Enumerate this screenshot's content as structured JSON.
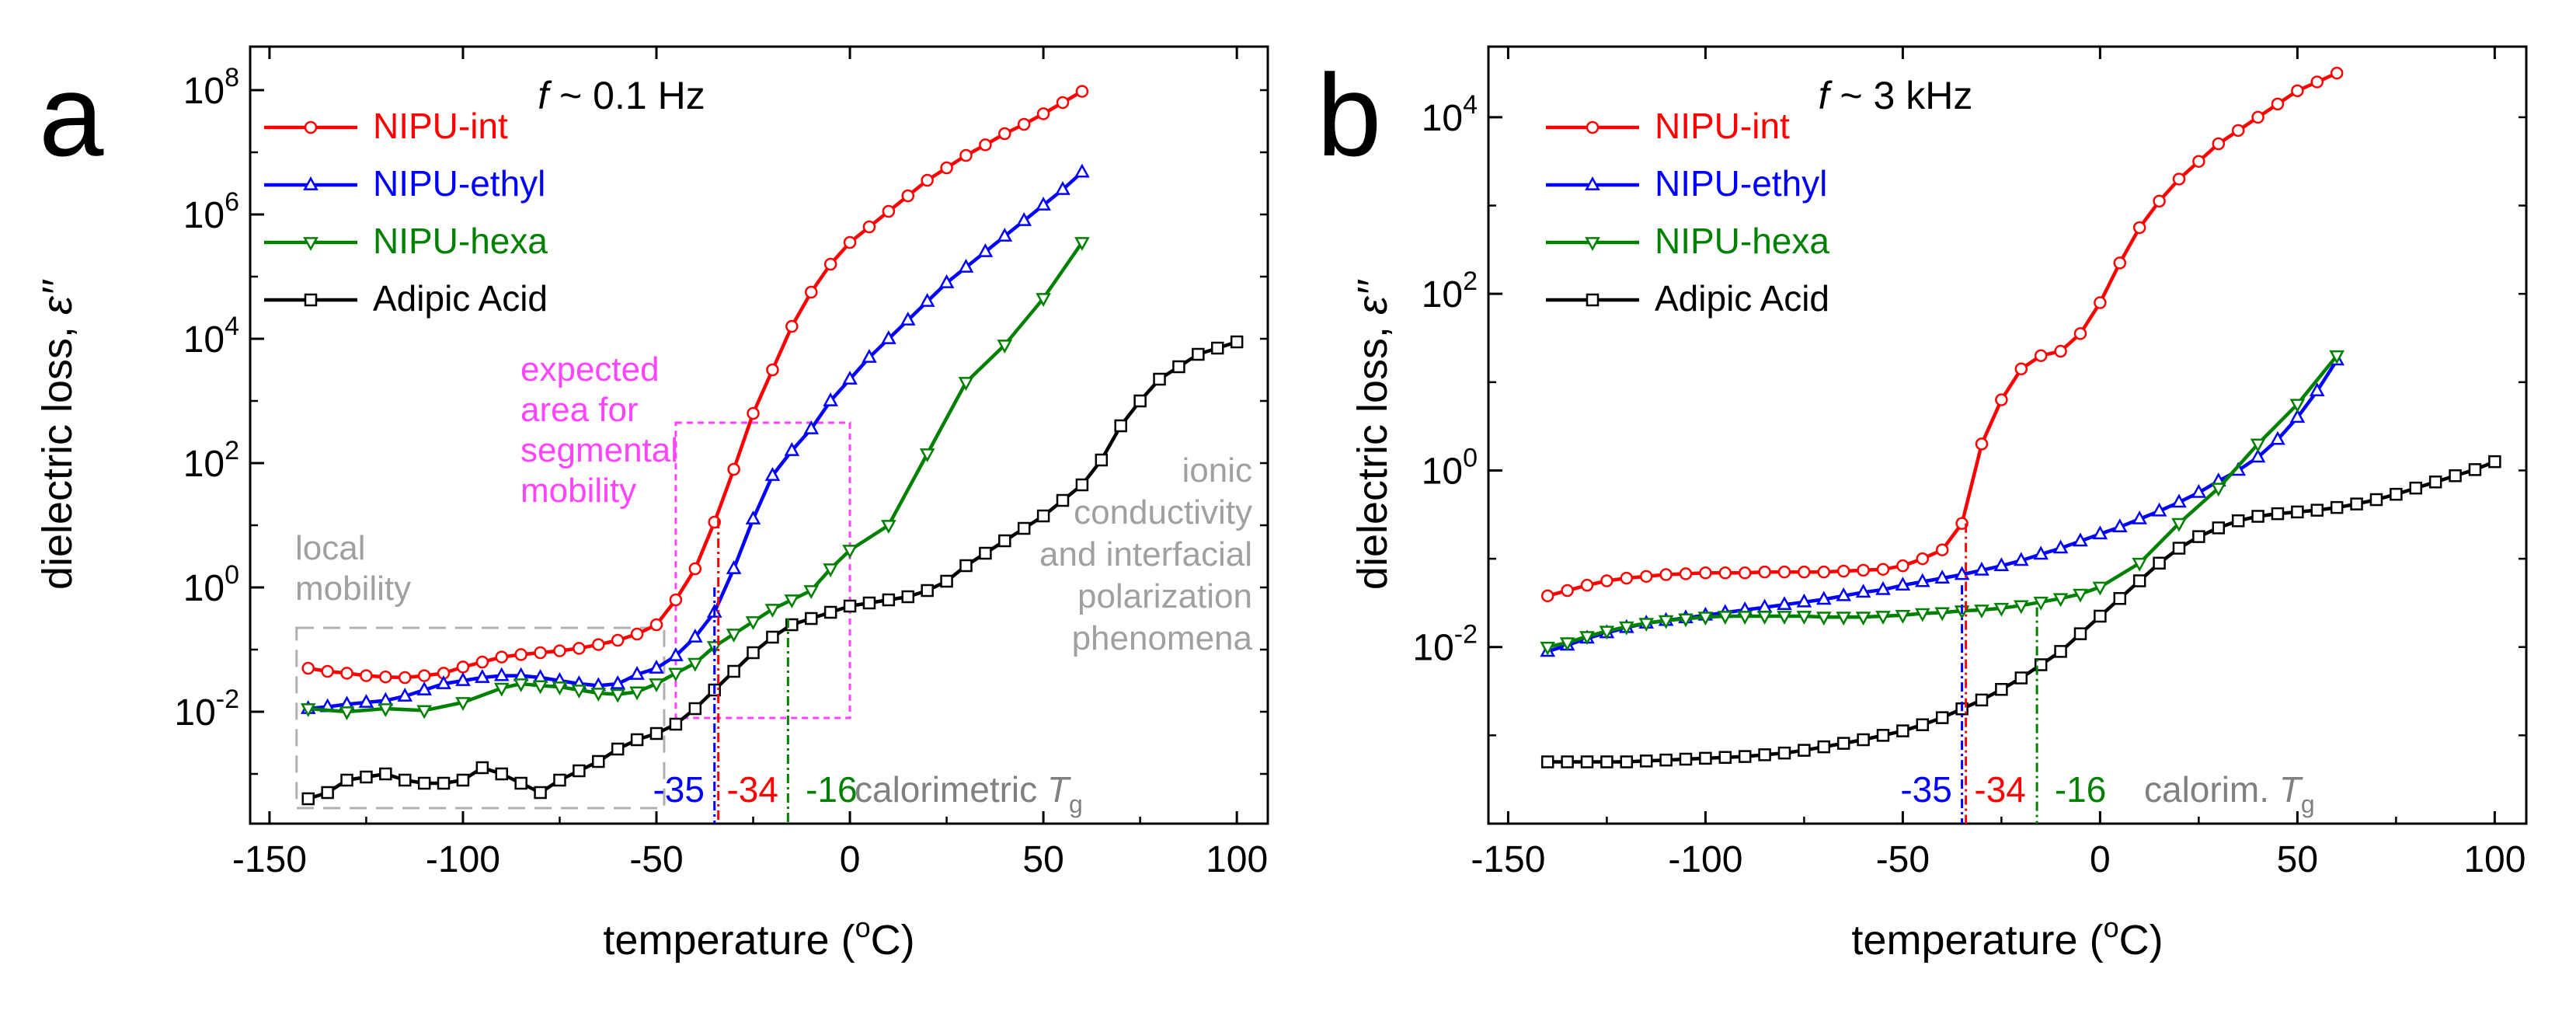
{
  "chart_data": [
    {
      "type": "line",
      "panel_label": "a",
      "frequency_label": "f ~ 0.1 Hz",
      "xlabel": "temperature (°C)",
      "ylabel": "dielectric loss, ε′′",
      "xlim": [
        -155,
        108
      ],
      "ylim_log10": [
        -3.8,
        8.7
      ],
      "xticks": [
        -150,
        -100,
        -50,
        0,
        50,
        100
      ],
      "xtick_labels": [
        "-150",
        "-100",
        "-50",
        "0",
        "50",
        "100"
      ],
      "yticks_log10": [
        -2,
        0,
        2,
        4,
        6,
        8
      ],
      "ytick_labels": [
        "10-2",
        "100",
        "102",
        "104",
        "106",
        "108"
      ],
      "legend_position": "top-left",
      "series": [
        {
          "name": "NIPU-int",
          "color": "#ff0000",
          "marker": "circle",
          "x": [
            -140,
            -135,
            -130,
            -125,
            -120,
            -115,
            -110,
            -105,
            -100,
            -95,
            -90,
            -85,
            -80,
            -75,
            -70,
            -65,
            -60,
            -55,
            -50,
            -45,
            -40,
            -35,
            -30,
            -25,
            -20,
            -15,
            -10,
            -5,
            0,
            5,
            10,
            15,
            20,
            25,
            30,
            35,
            40,
            45,
            50,
            55,
            60
          ],
          "log10_y": [
            -1.3,
            -1.35,
            -1.38,
            -1.42,
            -1.44,
            -1.45,
            -1.42,
            -1.38,
            -1.28,
            -1.2,
            -1.12,
            -1.08,
            -1.05,
            -1.02,
            -0.98,
            -0.92,
            -0.85,
            -0.75,
            -0.6,
            -0.2,
            0.3,
            1.05,
            1.9,
            2.8,
            3.5,
            4.2,
            4.75,
            5.2,
            5.55,
            5.8,
            6.05,
            6.3,
            6.55,
            6.75,
            6.95,
            7.12,
            7.3,
            7.45,
            7.62,
            7.8,
            7.98
          ]
        },
        {
          "name": "NIPU-ethyl",
          "color": "#0000ff",
          "marker": "triangle-up",
          "x": [
            -140,
            -135,
            -130,
            -125,
            -120,
            -115,
            -110,
            -105,
            -100,
            -95,
            -90,
            -85,
            -80,
            -75,
            -70,
            -65,
            -60,
            -55,
            -50,
            -45,
            -40,
            -35,
            -30,
            -25,
            -20,
            -15,
            -10,
            -5,
            0,
            5,
            10,
            15,
            20,
            25,
            30,
            35,
            40,
            45,
            50,
            55,
            60
          ],
          "log10_y": [
            -1.95,
            -1.92,
            -1.88,
            -1.85,
            -1.82,
            -1.75,
            -1.65,
            -1.55,
            -1.5,
            -1.45,
            -1.42,
            -1.42,
            -1.45,
            -1.5,
            -1.55,
            -1.58,
            -1.55,
            -1.4,
            -1.3,
            -1.1,
            -0.8,
            -0.4,
            0.3,
            1.1,
            1.8,
            2.2,
            2.55,
            3.0,
            3.35,
            3.7,
            4.0,
            4.3,
            4.6,
            4.9,
            5.15,
            5.4,
            5.65,
            5.9,
            6.15,
            6.4,
            6.68
          ]
        },
        {
          "name": "NIPU-hexa",
          "color": "#008000",
          "marker": "triangle-down",
          "x": [
            -140,
            -130,
            -120,
            -110,
            -100,
            -90,
            -85,
            -80,
            -75,
            -70,
            -65,
            -60,
            -55,
            -50,
            -45,
            -40,
            -35,
            -30,
            -25,
            -20,
            -15,
            -10,
            -5,
            0,
            10,
            20,
            30,
            40,
            50,
            60
          ],
          "log10_y": [
            -1.95,
            -2.0,
            -1.95,
            -1.98,
            -1.85,
            -1.62,
            -1.55,
            -1.58,
            -1.6,
            -1.65,
            -1.7,
            -1.72,
            -1.68,
            -1.55,
            -1.38,
            -1.22,
            -0.95,
            -0.75,
            -0.55,
            -0.35,
            -0.2,
            -0.05,
            0.3,
            0.6,
            1.0,
            2.15,
            3.3,
            3.9,
            4.65,
            5.55
          ]
        },
        {
          "name": "Adipic Acid",
          "color": "#000000",
          "marker": "square",
          "x": [
            -140,
            -135,
            -130,
            -125,
            -120,
            -115,
            -110,
            -105,
            -100,
            -95,
            -90,
            -85,
            -80,
            -75,
            -70,
            -65,
            -60,
            -55,
            -50,
            -45,
            -40,
            -35,
            -30,
            -25,
            -20,
            -15,
            -10,
            -5,
            0,
            5,
            10,
            15,
            20,
            25,
            30,
            35,
            40,
            45,
            50,
            55,
            60,
            65,
            70,
            75,
            80,
            85,
            90,
            95,
            100
          ],
          "log10_y": [
            -3.4,
            -3.3,
            -3.1,
            -3.05,
            -3.0,
            -3.1,
            -3.15,
            -3.15,
            -3.1,
            -2.9,
            -3.0,
            -3.15,
            -3.3,
            -3.1,
            -2.95,
            -2.8,
            -2.6,
            -2.45,
            -2.35,
            -2.2,
            -1.95,
            -1.65,
            -1.35,
            -1.05,
            -0.8,
            -0.6,
            -0.5,
            -0.4,
            -0.3,
            -0.25,
            -0.2,
            -0.15,
            -0.05,
            0.1,
            0.35,
            0.55,
            0.75,
            0.95,
            1.15,
            1.4,
            1.65,
            2.05,
            2.6,
            3.0,
            3.35,
            3.55,
            3.75,
            3.85,
            3.95
          ]
        }
      ],
      "vlines": [
        {
          "x": -35,
          "label": "-35",
          "color": "#0000ff",
          "log10_top": 0.0
        },
        {
          "x": -34,
          "label": "-34",
          "color": "#ff0000",
          "log10_top": 1.1
        },
        {
          "x": -16,
          "label": "-16",
          "color": "#008000",
          "log10_top": -0.5
        }
      ],
      "tg_label": "calorimetric T",
      "tg_subscript": "g",
      "annotations": {
        "local_mobility": [
          "local",
          "mobility"
        ],
        "expected_area": [
          "expected",
          "area for",
          "segmental",
          "mobility"
        ],
        "ionic": [
          "ionic",
          "conductivity",
          "and interfacial",
          "polarization",
          "phenomena"
        ]
      },
      "boxes": [
        {
          "name": "local-mobility-box",
          "x0": -143,
          "x1": -48,
          "log10_y0": -3.55,
          "log10_y1": -0.65,
          "color": "#b0b0b0"
        },
        {
          "name": "segmental-box",
          "x0": -45,
          "x1": 0,
          "log10_y0": -2.1,
          "log10_y1": 2.65,
          "color": "#ff44ff"
        }
      ]
    },
    {
      "type": "line",
      "panel_label": "b",
      "frequency_label": "f ~ 3 kHz",
      "xlabel": "temperature (°C)",
      "ylabel": "dielectric loss, ε′′",
      "xlim": [
        -155,
        108
      ],
      "ylim_log10": [
        -4.0,
        4.8
      ],
      "xticks": [
        -150,
        -100,
        -50,
        0,
        50,
        100
      ],
      "xtick_labels": [
        "-150",
        "-100",
        "-50",
        "0",
        "50",
        "100"
      ],
      "yticks_log10": [
        -2,
        0,
        2,
        4
      ],
      "ytick_labels": [
        "10-2",
        "100",
        "102",
        "104"
      ],
      "legend_position": "top-left",
      "series": [
        {
          "name": "NIPU-int",
          "color": "#ff0000",
          "marker": "circle",
          "x": [
            -140,
            -135,
            -130,
            -125,
            -120,
            -115,
            -110,
            -105,
            -100,
            -95,
            -90,
            -85,
            -80,
            -75,
            -70,
            -65,
            -60,
            -55,
            -50,
            -45,
            -40,
            -35,
            -30,
            -25,
            -20,
            -15,
            -10,
            -5,
            0,
            5,
            10,
            15,
            20,
            25,
            30,
            35,
            40,
            45,
            50,
            55,
            60
          ],
          "log10_y": [
            -1.42,
            -1.36,
            -1.3,
            -1.25,
            -1.22,
            -1.2,
            -1.18,
            -1.17,
            -1.16,
            -1.16,
            -1.16,
            -1.15,
            -1.15,
            -1.15,
            -1.15,
            -1.14,
            -1.13,
            -1.12,
            -1.08,
            -1.0,
            -0.9,
            -0.6,
            0.3,
            0.8,
            1.15,
            1.3,
            1.35,
            1.55,
            1.9,
            2.35,
            2.75,
            3.05,
            3.3,
            3.5,
            3.7,
            3.85,
            4.0,
            4.15,
            4.3,
            4.4,
            4.5
          ]
        },
        {
          "name": "NIPU-ethyl",
          "color": "#0000ff",
          "marker": "triangle-up",
          "x": [
            -140,
            -135,
            -130,
            -125,
            -120,
            -115,
            -110,
            -105,
            -100,
            -95,
            -90,
            -85,
            -80,
            -75,
            -70,
            -65,
            -60,
            -55,
            -50,
            -45,
            -40,
            -35,
            -30,
            -25,
            -20,
            -15,
            -10,
            -5,
            0,
            5,
            10,
            15,
            20,
            25,
            30,
            35,
            40,
            45,
            50,
            55,
            60
          ],
          "log10_y": [
            -2.05,
            -1.98,
            -1.9,
            -1.84,
            -1.78,
            -1.73,
            -1.7,
            -1.67,
            -1.64,
            -1.61,
            -1.58,
            -1.55,
            -1.52,
            -1.49,
            -1.46,
            -1.42,
            -1.38,
            -1.35,
            -1.3,
            -1.26,
            -1.22,
            -1.18,
            -1.13,
            -1.08,
            -1.02,
            -0.95,
            -0.88,
            -0.8,
            -0.72,
            -0.64,
            -0.55,
            -0.46,
            -0.36,
            -0.25,
            -0.12,
            0.0,
            0.15,
            0.35,
            0.6,
            0.9,
            1.25
          ]
        },
        {
          "name": "NIPU-hexa",
          "color": "#008000",
          "marker": "triangle-down",
          "x": [
            -140,
            -135,
            -130,
            -125,
            -120,
            -115,
            -110,
            -105,
            -100,
            -95,
            -90,
            -85,
            -80,
            -75,
            -70,
            -65,
            -60,
            -55,
            -50,
            -45,
            -40,
            -35,
            -30,
            -25,
            -20,
            -15,
            -10,
            -5,
            0,
            10,
            20,
            30,
            40,
            50,
            60
          ],
          "log10_y": [
            -2.0,
            -1.95,
            -1.88,
            -1.82,
            -1.77,
            -1.73,
            -1.7,
            -1.68,
            -1.66,
            -1.65,
            -1.65,
            -1.65,
            -1.65,
            -1.65,
            -1.66,
            -1.66,
            -1.66,
            -1.65,
            -1.64,
            -1.62,
            -1.61,
            -1.59,
            -1.58,
            -1.56,
            -1.53,
            -1.49,
            -1.45,
            -1.4,
            -1.32,
            -1.05,
            -0.6,
            -0.2,
            0.3,
            0.75,
            1.3
          ]
        },
        {
          "name": "Adipic Acid",
          "color": "#000000",
          "marker": "square",
          "x": [
            -140,
            -135,
            -130,
            -125,
            -120,
            -115,
            -110,
            -105,
            -100,
            -95,
            -90,
            -85,
            -80,
            -75,
            -70,
            -65,
            -60,
            -55,
            -50,
            -45,
            -40,
            -35,
            -30,
            -25,
            -20,
            -15,
            -10,
            -5,
            0,
            5,
            10,
            15,
            20,
            25,
            30,
            35,
            40,
            45,
            50,
            55,
            60,
            65,
            70,
            75,
            80,
            85,
            90,
            95,
            100
          ],
          "log10_y": [
            -3.3,
            -3.3,
            -3.3,
            -3.3,
            -3.3,
            -3.29,
            -3.28,
            -3.27,
            -3.26,
            -3.25,
            -3.24,
            -3.22,
            -3.2,
            -3.17,
            -3.13,
            -3.09,
            -3.05,
            -3.0,
            -2.95,
            -2.88,
            -2.8,
            -2.7,
            -2.6,
            -2.48,
            -2.35,
            -2.2,
            -2.05,
            -1.85,
            -1.65,
            -1.45,
            -1.25,
            -1.05,
            -0.88,
            -0.75,
            -0.65,
            -0.57,
            -0.52,
            -0.49,
            -0.47,
            -0.45,
            -0.42,
            -0.38,
            -0.33,
            -0.27,
            -0.2,
            -0.13,
            -0.06,
            0.01,
            0.1
          ]
        }
      ],
      "vlines": [
        {
          "x": -35,
          "label": "-35",
          "color": "#0000ff",
          "log10_top": -1.3
        },
        {
          "x": -34,
          "label": "-34",
          "color": "#ff0000",
          "log10_top": -0.6
        },
        {
          "x": -16,
          "label": "-16",
          "color": "#008000",
          "log10_top": -1.55
        }
      ],
      "tg_label": "calorim. T",
      "tg_subscript": "g"
    }
  ],
  "ui": {
    "axis_color": "#000000",
    "annotation_gray": "#a0a0a0",
    "annotation_magenta": "#ff44ff"
  }
}
